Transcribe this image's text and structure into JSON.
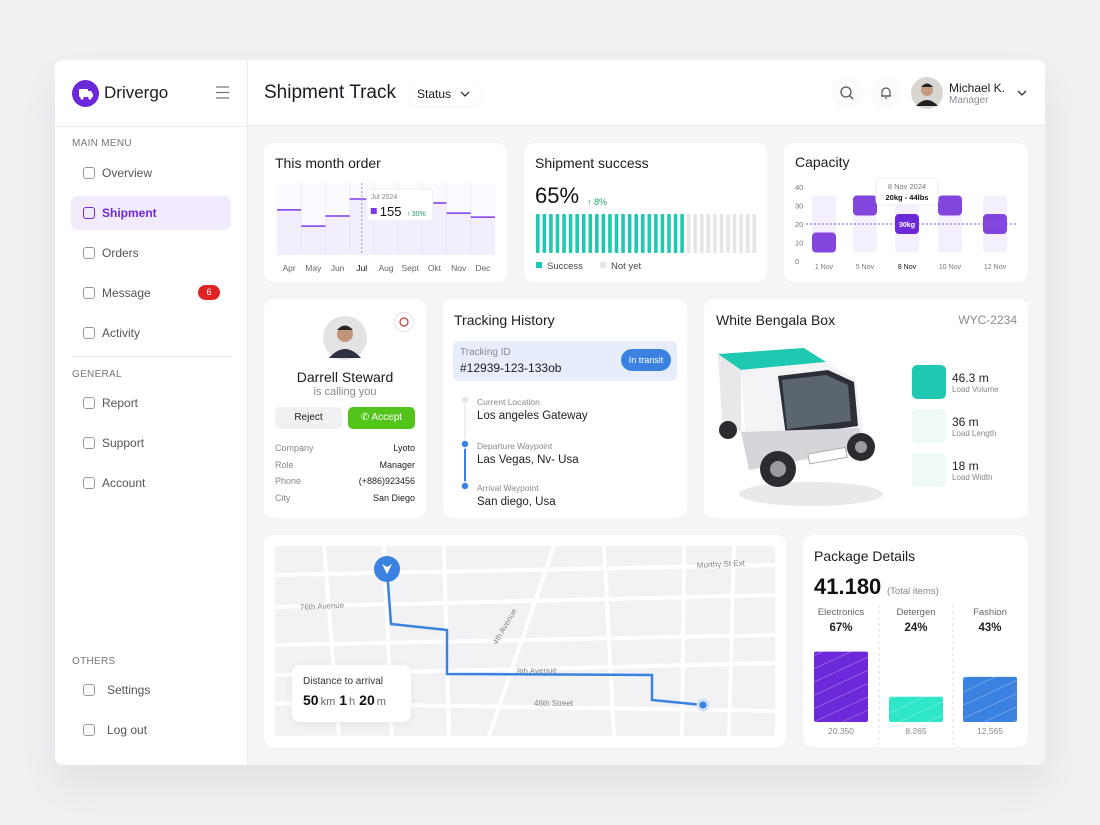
{
  "brand": "Drivergo",
  "sidebar": {
    "sections": [
      {
        "label": "MAIN MENU",
        "items": [
          {
            "label": "Overview"
          },
          {
            "label": "Shipment"
          },
          {
            "label": "Orders"
          },
          {
            "label": "Message",
            "badge": 6
          },
          {
            "label": "Activity"
          }
        ]
      },
      {
        "label": "GENERAL",
        "items": [
          {
            "label": "Report"
          },
          {
            "label": "Support"
          },
          {
            "label": "Account"
          }
        ]
      },
      {
        "label": "OTHERS",
        "items": [
          {
            "label": "Settings"
          },
          {
            "label": "Log out"
          }
        ]
      }
    ]
  },
  "header": {
    "title": "Shipment Track",
    "filter": "Status",
    "user": {
      "name": "Michael K.",
      "role": "Manager"
    }
  },
  "chart_data": [
    {
      "type": "line",
      "title": "This month order",
      "categories": [
        "Apr",
        "May",
        "Jun",
        "Jul",
        "Aug",
        "Sept",
        "Okt",
        "Nov",
        "Dec"
      ],
      "values": [
        125,
        80,
        108,
        155,
        111,
        111,
        144,
        116,
        105
      ],
      "color": "#7c3aed",
      "tooltip": {
        "label": "Jul 2024",
        "change": "30%"
      }
    },
    {
      "type": "progress",
      "title": "Shipment success",
      "value": 65,
      "value_label": "65%",
      "change": "8%",
      "series": [
        {
          "name": "Success",
          "color": "#1fc8b0"
        },
        {
          "name": "Not yet",
          "color": "#e6e6ea"
        }
      ]
    },
    {
      "type": "grid",
      "title": "Capacity",
      "categories": [
        "1 Nov",
        "5 Nov",
        "8 Nov",
        "10 Nov",
        "12 Nov"
      ],
      "values": [
        10,
        30,
        20,
        30,
        20
      ],
      "ylim": [
        0,
        40
      ],
      "yticks": [
        0,
        10,
        20,
        30,
        40
      ],
      "color": "#6d28d9",
      "tooltip": {
        "date": "8 Nov 2024",
        "range": "20kg - 44lbs",
        "label": "30kg"
      }
    },
    {
      "type": "bar",
      "title": "Package Details",
      "total": "41.180",
      "total_label": "(Total items)",
      "categories": [
        "Electronics",
        "Detergen",
        "Fashion"
      ],
      "values": [
        67,
        24,
        43
      ],
      "value_labels": [
        "67%",
        "24%",
        "43%"
      ],
      "counts": [
        "20.350",
        "8.265",
        "12.565"
      ],
      "colors": [
        "#6d28d9",
        "#2ee6c8",
        "#3b82e0"
      ]
    }
  ],
  "caller": {
    "name": "Darrell Steward",
    "status": "is calling you",
    "reject": "Reject",
    "accept": "Accept",
    "details": [
      [
        "Company",
        "Lyoto"
      ],
      [
        "Role",
        "Manager"
      ],
      [
        "Phone",
        "(+886)923456"
      ],
      [
        "City",
        "San Diego"
      ]
    ]
  },
  "tracking": {
    "title": "Tracking History",
    "id_label": "Tracking ID",
    "id": "#12939-123-133ob",
    "status": "In transit",
    "steps": [
      {
        "label": "Current Location",
        "place": "Los angeles Gateway"
      },
      {
        "label": "Departure Waypoint",
        "place": "Las Vegas, Nv- Usa"
      },
      {
        "label": "Arrival Waypoint",
        "place": "San diego, Usa"
      }
    ]
  },
  "box": {
    "title": "White Bengala Box",
    "code": "WYC-2234",
    "specs": [
      {
        "value": "46.3 m",
        "label": "Load Volume"
      },
      {
        "value": "36 m",
        "label": "Load Length"
      },
      {
        "value": "18 m",
        "label": "Load Width"
      }
    ]
  },
  "map": {
    "streets": [
      "Murthy St Ext",
      "76th Avenue",
      "4th Avenue",
      "8th Avenue",
      "46th Street"
    ],
    "distance_label": "Distance to arrival",
    "distance": "50",
    "distance_unit": "km",
    "hours": "1",
    "hours_unit": "h",
    "minutes": "20",
    "minutes_unit": "m"
  }
}
